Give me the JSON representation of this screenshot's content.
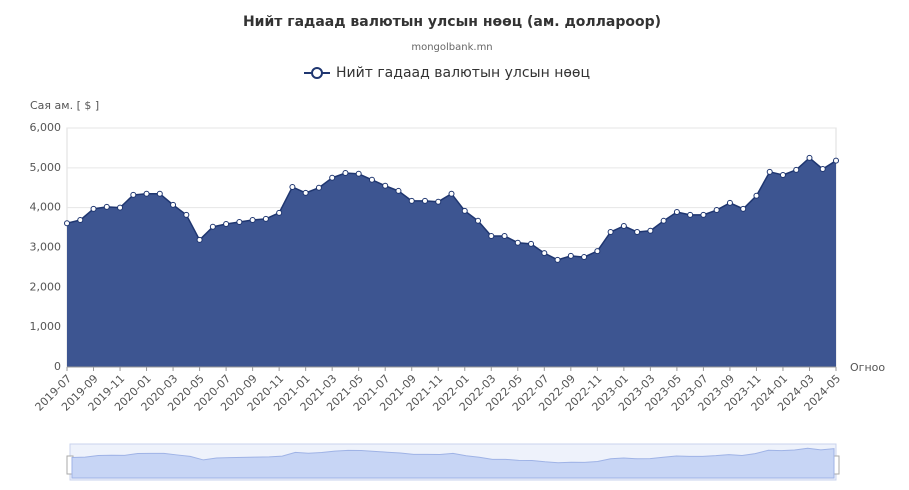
{
  "chart_data": {
    "type": "area",
    "title": "Нийт гадаад валютын улсын нөөц (ам. доллароор)",
    "subtitle": "mongolbank.mn",
    "y_label": "Сая ам. [ $ ]",
    "x_label": "Огноо",
    "categories": [
      "2019-07",
      null,
      "2019-09",
      null,
      "2019-11",
      null,
      "2020-01",
      null,
      "2020-03",
      null,
      "2020-05",
      null,
      "2020-07",
      null,
      "2020-09",
      null,
      "2020-11",
      null,
      "2021-01",
      null,
      "2021-03",
      null,
      "2021-05",
      null,
      "2021-07",
      null,
      "2021-09",
      null,
      "2021-11",
      null,
      "2022-01",
      null,
      "2022-03",
      null,
      "2022-05",
      null,
      "2022-07",
      null,
      "2022-09",
      null,
      "2022-11",
      null,
      "2023-01",
      null,
      "2023-03",
      null,
      "2023-05",
      null,
      "2023-07",
      null,
      "2023-09",
      null,
      "2023-11",
      null,
      "2024-01",
      null,
      "2024-03",
      null,
      "2024-05"
    ],
    "series": [
      {
        "name": "Нийт гадаад валютын улсын нөөц",
        "color": "#3d5591",
        "line_color": "#1f3670",
        "values": [
          3610,
          3690,
          3970,
          4020,
          4000,
          4320,
          4350,
          4350,
          4070,
          3820,
          3190,
          3520,
          3590,
          3640,
          3690,
          3720,
          3870,
          4520,
          4370,
          4500,
          4750,
          4870,
          4850,
          4700,
          4550,
          4420,
          4170,
          4170,
          4150,
          4350,
          3920,
          3670,
          3290,
          3290,
          3120,
          3090,
          2860,
          2690,
          2790,
          2760,
          2910,
          3390,
          3540,
          3390,
          3420,
          3670,
          3890,
          3820,
          3820,
          3940,
          4120,
          3970,
          4300,
          4900,
          4820,
          4950,
          5250,
          4970,
          5180
        ]
      }
    ],
    "ylim": [
      0,
      6000
    ],
    "yticks": [
      0,
      {
        "value": 1000,
        "label": "1,000"
      },
      {
        "value": 2000,
        "label": "2,000"
      },
      {
        "value": 3000,
        "label": "3,000"
      },
      {
        "value": 4000,
        "label": "4,000"
      },
      {
        "value": 5000,
        "label": "5,000"
      },
      {
        "value": 6000,
        "label": "6,000"
      }
    ],
    "grid": true
  }
}
